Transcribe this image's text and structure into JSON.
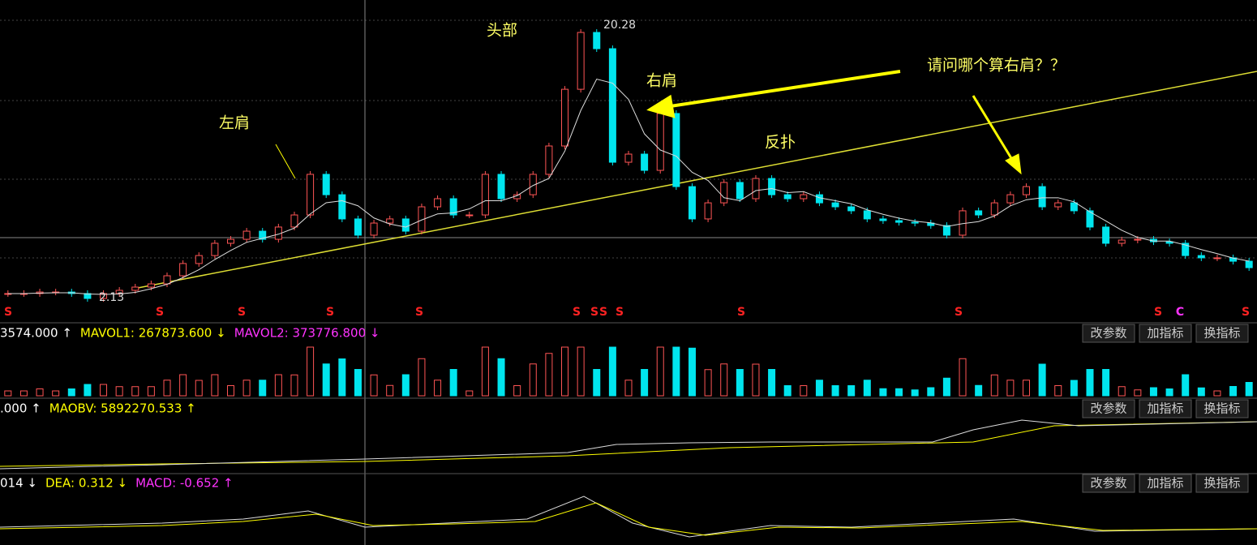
{
  "main_chart": {
    "type": "candlestick",
    "closes": [
      2.45,
      2.45,
      2.55,
      2.55,
      2.45,
      2.13,
      2.45,
      2.66,
      2.87,
      3.08,
      3.61,
      4.41,
      4.93,
      5.73,
      5.99,
      6.52,
      5.99,
      6.79,
      7.58,
      10.23,
      8.9,
      7.32,
      6.26,
      7.05,
      7.32,
      6.52,
      8.11,
      8.64,
      7.58,
      7.58,
      10.23,
      8.64,
      8.9,
      10.23,
      12.08,
      15.78,
      19.49,
      18.43,
      11.02,
      11.55,
      10.49,
      14.2,
      9.43,
      7.32,
      8.37,
      9.7,
      8.64,
      9.96,
      8.9,
      8.64,
      8.9,
      8.37,
      8.11,
      7.85,
      7.32,
      7.21,
      7.1,
      7.05,
      6.89,
      6.26,
      7.85,
      7.58,
      8.37,
      8.9,
      9.43,
      8.11,
      8.37,
      7.85,
      6.79,
      5.73,
      5.94,
      5.99,
      5.83,
      5.73,
      4.93,
      4.78,
      4.78,
      4.56,
      4.14
    ],
    "high_label": "20.28",
    "low_label": "2.13",
    "signals": [
      "S",
      "S",
      "S",
      "S",
      "S",
      "S",
      "S",
      "S",
      "S",
      "S",
      "S",
      "S",
      "C",
      "S"
    ],
    "annotations": {
      "head": "头部",
      "left_shoulder": "左肩",
      "right_shoulder": "右肩",
      "pullback": "反扑",
      "question": "请问哪个算右肩？？"
    }
  },
  "panels": [
    {
      "header": [
        {
          "text": "3574.000 ↑",
          "color": "#ffffff"
        },
        {
          "text": "MAVOL1: 267873.600 ↓",
          "color": "#ffff00"
        },
        {
          "text": "MAVOL2: 373776.800 ↓",
          "color": "#ff33ff"
        }
      ],
      "buttons": [
        "改参数",
        "加指标",
        "换指标"
      ]
    },
    {
      "header": [
        {
          "text": ".000 ↑",
          "color": "#ffffff"
        },
        {
          "text": "MAOBV: 5892270.533 ↑",
          "color": "#ffff00"
        }
      ],
      "buttons": [
        "改参数",
        "加指标",
        "换指标"
      ]
    },
    {
      "header": [
        {
          "text": "014 ↓",
          "color": "#ffffff"
        },
        {
          "text": "DEA: 0.312 ↓",
          "color": "#ffff00"
        },
        {
          "text": "MACD: -0.652 ↑",
          "color": "#ff33ff"
        }
      ],
      "buttons": [
        "改参数",
        "加指标",
        "换指标"
      ]
    }
  ]
}
